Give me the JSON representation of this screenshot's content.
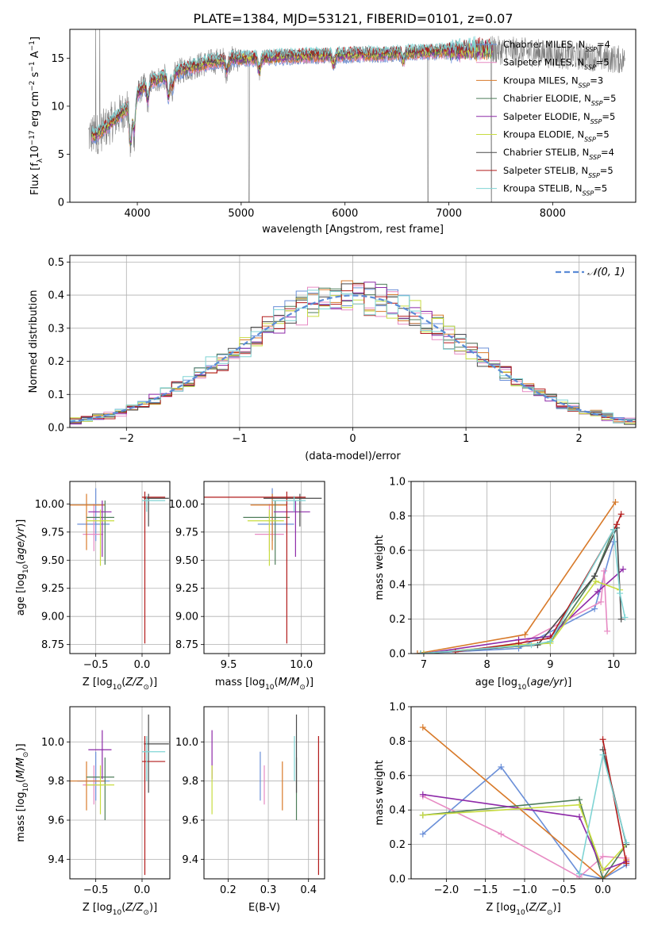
{
  "figure_title": "PLATE=1384, MJD=53121, FIBERID=0101, z=0.07",
  "colors": {
    "Chabrier MILES": "#6a8fd8",
    "Salpeter MILES": "#e78ac3",
    "Kroupa MILES": "#d87a2a",
    "Chabrier ELODIE": "#4e7d5a",
    "Salpeter ELODIE": "#8e2aa8",
    "Kroupa ELODIE": "#c8dc40",
    "Chabrier STELIB": "#4a4a4a",
    "Salpeter STELIB": "#b21b1b",
    "Kroupa STELIB": "#7fd4d4",
    "data": "#808080",
    "normal": "#5b8bd6"
  },
  "legend": [
    {
      "model": "Chabrier MILES",
      "text": "Chabrier MILES, N",
      "sub": "SSP",
      "n": "=4"
    },
    {
      "model": "Salpeter MILES",
      "text": "Salpeter MILES, N",
      "sub": "SSP",
      "n": "=5"
    },
    {
      "model": "Kroupa MILES",
      "text": "Kroupa MILES, N",
      "sub": "SSP",
      "n": "=3"
    },
    {
      "model": "Chabrier ELODIE",
      "text": "Chabrier ELODIE, N",
      "sub": "SSP",
      "n": "=5"
    },
    {
      "model": "Salpeter ELODIE",
      "text": "Salpeter ELODIE, N",
      "sub": "SSP",
      "n": "=5"
    },
    {
      "model": "Kroupa ELODIE",
      "text": "Kroupa ELODIE, N",
      "sub": "SSP",
      "n": "=5"
    },
    {
      "model": "Chabrier STELIB",
      "text": "Chabrier STELIB, N",
      "sub": "SSP",
      "n": "=4"
    },
    {
      "model": "Salpeter STELIB",
      "text": "Salpeter STELIB, N",
      "sub": "SSP",
      "n": "=5"
    },
    {
      "model": "Kroupa STELIB",
      "text": "Kroupa STELIB, N",
      "sub": "SSP",
      "n": "=5"
    }
  ],
  "chart_data": [
    {
      "id": "spectrum",
      "type": "line",
      "title": "PLATE=1384, MJD=53121, FIBERID=0101, z=0.07",
      "xlabel": "wavelength [Angstrom, rest frame]",
      "ylabel": "Flux [f_λ 10^-17 erg cm^-2 s^-1 A^-1]",
      "xlim": [
        3350,
        8800
      ],
      "ylim": [
        0,
        18
      ],
      "xticks": [
        4000,
        5000,
        6000,
        7000,
        8000
      ],
      "yticks": [
        0,
        5,
        10,
        15
      ],
      "grid": false,
      "legend_position": "top-right",
      "continuum": {
        "x": [
          3530,
          3600,
          3700,
          3800,
          3900,
          4000,
          4100,
          4200,
          4300,
          4400,
          4500,
          4700,
          4900,
          5100,
          5300,
          5500,
          5700,
          5900,
          6100,
          6300,
          6500,
          6700,
          6900,
          7100,
          7300,
          7500,
          7700,
          7900,
          8100,
          8300,
          8500,
          8700
        ],
        "y": [
          7.0,
          7.0,
          7.8,
          8.8,
          9.8,
          11.3,
          12.5,
          12.8,
          13.2,
          13.6,
          14.0,
          14.6,
          14.9,
          15.0,
          15.1,
          15.2,
          15.3,
          15.3,
          15.4,
          15.4,
          15.5,
          15.6,
          15.7,
          15.8,
          15.9,
          15.8,
          15.7,
          15.5,
          15.3,
          15.2,
          15.0,
          14.8
        ]
      },
      "features": [
        {
          "x": 3934,
          "depth": 4.5
        },
        {
          "x": 3969,
          "depth": 3.5
        },
        {
          "x": 4101,
          "depth": 2.0
        },
        {
          "x": 4300,
          "depth": 2.5
        },
        {
          "x": 4340,
          "depth": 1.5
        },
        {
          "x": 4861,
          "depth": 1.2
        },
        {
          "x": 5175,
          "depth": 1.5
        },
        {
          "x": 5890,
          "depth": 1.0
        },
        {
          "x": 6563,
          "depth": 0.8
        }
      ],
      "data_gaps": [
        5075,
        6800,
        7410
      ],
      "models_end_x": 7420
    },
    {
      "id": "residuals",
      "type": "line",
      "xlabel": "(data-model)/error",
      "ylabel": "Normed distribution",
      "xlim": [
        -2.5,
        2.5
      ],
      "ylim": [
        0,
        0.52
      ],
      "xticks": [
        -2,
        -1,
        0,
        1,
        2
      ],
      "yticks": [
        0.0,
        0.1,
        0.2,
        0.3,
        0.4,
        0.5
      ],
      "grid": true,
      "legend_position": "top-right",
      "legend": [
        "𝒩(0,1)"
      ],
      "bin_width": 0.1
    },
    {
      "id": "age-vs-Z",
      "type": "scatter",
      "xlabel": "Z [log10(Z/Z⊙)]",
      "ylabel": "age  [log10(age/yr)]",
      "xlim": [
        -0.78,
        0.3
      ],
      "ylim": [
        8.67,
        10.2
      ],
      "xticks": [
        -0.5,
        0.0
      ],
      "yticks": [
        8.75,
        9.0,
        9.25,
        9.5,
        9.75,
        10.0
      ],
      "grid": true,
      "points": [
        {
          "model": "Chabrier MILES",
          "x": -0.5,
          "xerr": [
            0.2,
            0.15
          ],
          "y": 9.82,
          "yerr": [
            0.15,
            0.32
          ]
        },
        {
          "model": "Salpeter MILES",
          "x": -0.52,
          "xerr": [
            0.12,
            0.1
          ],
          "y": 9.73,
          "yerr": [
            0.15,
            0.27
          ]
        },
        {
          "model": "Kroupa MILES",
          "x": -0.6,
          "xerr": [
            0.2,
            0.2
          ],
          "y": 9.99,
          "yerr": [
            0.4,
            0.1
          ]
        },
        {
          "model": "Chabrier ELODIE",
          "x": -0.4,
          "xerr": [
            0.2,
            0.1
          ],
          "y": 9.88,
          "yerr": [
            0.42,
            0.15
          ]
        },
        {
          "model": "Salpeter ELODIE",
          "x": -0.43,
          "xerr": [
            0.15,
            0.1
          ],
          "y": 9.93,
          "yerr": [
            0.4,
            0.1
          ]
        },
        {
          "model": "Kroupa ELODIE",
          "x": -0.45,
          "xerr": [
            0.15,
            0.15
          ],
          "y": 9.85,
          "yerr": [
            0.4,
            0.1
          ]
        },
        {
          "model": "Chabrier STELIB",
          "x": 0.07,
          "xerr": [
            0.05,
            0.22
          ],
          "y": 10.05,
          "yerr": [
            0.25,
            0.04
          ]
        },
        {
          "model": "Salpeter STELIB",
          "x": 0.03,
          "xerr": [
            0.03,
            0.22
          ],
          "y": 10.06,
          "yerr": [
            1.3,
            0.05
          ]
        },
        {
          "model": "Kroupa STELIB",
          "x": 0.05,
          "xerr": [
            0.05,
            0.2
          ],
          "y": 10.03,
          "yerr": [
            0.1,
            0.04
          ]
        }
      ]
    },
    {
      "id": "age-vs-mass",
      "type": "scatter",
      "xlabel": "mass [log10(M/M⊙)]",
      "ylabel": "",
      "xlim": [
        9.33,
        10.16
      ],
      "ylim": [
        8.67,
        10.2
      ],
      "xticks": [
        9.5,
        10.0
      ],
      "yticks": [
        8.75,
        9.0,
        9.25,
        9.5,
        9.75,
        10.0
      ],
      "grid": true,
      "points": [
        {
          "model": "Chabrier MILES",
          "x": 9.8,
          "xerr": [
            0.1,
            0.15
          ],
          "y": 9.82,
          "yerr": [
            0.15,
            0.32
          ]
        },
        {
          "model": "Salpeter MILES",
          "x": 9.78,
          "xerr": [
            0.1,
            0.1
          ],
          "y": 9.73,
          "yerr": [
            0.15,
            0.27
          ]
        },
        {
          "model": "Kroupa MILES",
          "x": 9.8,
          "xerr": [
            0.15,
            0.1
          ],
          "y": 9.99,
          "yerr": [
            0.4,
            0.1
          ]
        },
        {
          "model": "Chabrier ELODIE",
          "x": 9.82,
          "xerr": [
            0.22,
            0.1
          ],
          "y": 9.88,
          "yerr": [
            0.42,
            0.15
          ]
        },
        {
          "model": "Salpeter ELODIE",
          "x": 9.96,
          "xerr": [
            0.15,
            0.1
          ],
          "y": 9.93,
          "yerr": [
            0.4,
            0.1
          ]
        },
        {
          "model": "Kroupa ELODIE",
          "x": 9.78,
          "xerr": [
            0.15,
            0.1
          ],
          "y": 9.85,
          "yerr": [
            0.4,
            0.1
          ]
        },
        {
          "model": "Chabrier STELIB",
          "x": 9.99,
          "xerr": [
            0.25,
            0.15
          ],
          "y": 10.05,
          "yerr": [
            0.25,
            0.04
          ]
        },
        {
          "model": "Salpeter STELIB",
          "x": 9.9,
          "xerr": [
            0.58,
            0.13
          ],
          "y": 10.06,
          "yerr": [
            1.3,
            0.05
          ]
        },
        {
          "model": "Kroupa STELIB",
          "x": 9.95,
          "xerr": [
            0.15,
            0.08
          ],
          "y": 10.03,
          "yerr": [
            0.1,
            0.04
          ]
        }
      ]
    },
    {
      "id": "mass-vs-Z",
      "type": "scatter",
      "xlabel": "Z [log10(Z/Z⊙)]",
      "ylabel": "mass [log10(M/M⊙)]",
      "xlim": [
        -0.78,
        0.3
      ],
      "ylim": [
        9.3,
        10.18
      ],
      "xticks": [
        -0.5,
        0.0
      ],
      "yticks": [
        9.4,
        9.6,
        9.8,
        10.0
      ],
      "grid": true,
      "points": [
        {
          "model": "Chabrier MILES",
          "x": -0.5,
          "xerr": [
            0.2,
            0.15
          ],
          "y": 9.8,
          "yerr": [
            0.1,
            0.15
          ]
        },
        {
          "model": "Salpeter MILES",
          "x": -0.52,
          "xerr": [
            0.12,
            0.1
          ],
          "y": 9.78,
          "yerr": [
            0.1,
            0.1
          ]
        },
        {
          "model": "Kroupa MILES",
          "x": -0.6,
          "xerr": [
            0.2,
            0.2
          ],
          "y": 9.8,
          "yerr": [
            0.15,
            0.1
          ]
        },
        {
          "model": "Chabrier ELODIE",
          "x": -0.4,
          "xerr": [
            0.2,
            0.1
          ],
          "y": 9.82,
          "yerr": [
            0.22,
            0.1
          ]
        },
        {
          "model": "Salpeter ELODIE",
          "x": -0.43,
          "xerr": [
            0.15,
            0.1
          ],
          "y": 9.96,
          "yerr": [
            0.15,
            0.1
          ]
        },
        {
          "model": "Kroupa ELODIE",
          "x": -0.45,
          "xerr": [
            0.15,
            0.15
          ],
          "y": 9.78,
          "yerr": [
            0.15,
            0.1
          ]
        },
        {
          "model": "Chabrier STELIB",
          "x": 0.07,
          "xerr": [
            0.05,
            0.22
          ],
          "y": 9.99,
          "yerr": [
            0.25,
            0.15
          ]
        },
        {
          "model": "Salpeter STELIB",
          "x": 0.03,
          "xerr": [
            0.03,
            0.22
          ],
          "y": 9.9,
          "yerr": [
            0.58,
            0.13
          ]
        },
        {
          "model": "Kroupa STELIB",
          "x": 0.05,
          "xerr": [
            0.05,
            0.2
          ],
          "y": 9.95,
          "yerr": [
            0.15,
            0.08
          ]
        }
      ]
    },
    {
      "id": "mass-vs-EBV",
      "type": "scatter",
      "xlabel": "E(B-V)",
      "ylabel": "",
      "xlim": [
        0.14,
        0.44
      ],
      "ylim": [
        9.3,
        10.18
      ],
      "xticks": [
        0.2,
        0.3,
        0.4
      ],
      "yticks": [
        9.4,
        9.6,
        9.8,
        10.0
      ],
      "grid": true,
      "points": [
        {
          "model": "Chabrier MILES",
          "x": 0.28,
          "y": 9.8,
          "yerr": [
            0.1,
            0.15
          ]
        },
        {
          "model": "Salpeter MILES",
          "x": 0.29,
          "y": 9.78,
          "yerr": [
            0.1,
            0.1
          ]
        },
        {
          "model": "Kroupa MILES",
          "x": 0.335,
          "y": 9.8,
          "yerr": [
            0.15,
            0.1
          ]
        },
        {
          "model": "Chabrier ELODIE",
          "x": 0.37,
          "y": 9.82,
          "yerr": [
            0.22,
            0.1
          ]
        },
        {
          "model": "Salpeter ELODIE",
          "x": 0.16,
          "y": 9.96,
          "yerr": [
            0.15,
            0.1
          ]
        },
        {
          "model": "Kroupa ELODIE",
          "x": 0.16,
          "y": 9.78,
          "yerr": [
            0.15,
            0.1
          ]
        },
        {
          "model": "Chabrier STELIB",
          "x": 0.37,
          "y": 9.99,
          "yerr": [
            0.25,
            0.15
          ]
        },
        {
          "model": "Salpeter STELIB",
          "x": 0.425,
          "y": 9.9,
          "yerr": [
            0.58,
            0.13
          ]
        },
        {
          "model": "Kroupa STELIB",
          "x": 0.365,
          "y": 9.95,
          "yerr": [
            0.15,
            0.08
          ]
        }
      ]
    },
    {
      "id": "weight-vs-age",
      "type": "line",
      "xlabel": "age  [log10(age/yr)]",
      "ylabel": "mass weight",
      "xlim": [
        6.8,
        10.35
      ],
      "ylim": [
        0,
        1.0
      ],
      "xticks": [
        7,
        8,
        9,
        10
      ],
      "yticks": [
        0.0,
        0.2,
        0.4,
        0.6,
        0.8,
        1.0
      ],
      "grid": true,
      "series": [
        {
          "model": "Chabrier MILES",
          "x": [
            6.9,
            8.5,
            9.7,
            10.0
          ],
          "y": [
            0.0,
            0.03,
            0.26,
            0.65
          ]
        },
        {
          "model": "Salpeter MILES",
          "x": [
            7.0,
            8.5,
            9.8,
            9.85,
            9.9
          ],
          "y": [
            0.0,
            0.05,
            0.3,
            0.48,
            0.13
          ]
        },
        {
          "model": "Kroupa MILES",
          "x": [
            6.9,
            8.6,
            10.03
          ],
          "y": [
            0.0,
            0.11,
            0.88
          ]
        },
        {
          "model": "Chabrier ELODIE",
          "x": [
            6.95,
            8.8,
            9.0,
            9.7,
            10.0
          ],
          "y": [
            0.0,
            0.05,
            0.07,
            0.45,
            0.72
          ]
        },
        {
          "model": "Salpeter ELODIE",
          "x": [
            7.0,
            8.5,
            9.0,
            9.75,
            10.15
          ],
          "y": [
            0.0,
            0.08,
            0.1,
            0.36,
            0.49
          ]
        },
        {
          "model": "Kroupa ELODIE",
          "x": [
            7.0,
            8.5,
            9.0,
            9.72,
            10.1
          ],
          "y": [
            0.0,
            0.05,
            0.06,
            0.42,
            0.37
          ]
        },
        {
          "model": "Chabrier STELIB",
          "x": [
            6.95,
            8.8,
            9.7,
            10.05,
            10.12
          ],
          "y": [
            0.0,
            0.05,
            0.45,
            0.73,
            0.2
          ]
        },
        {
          "model": "Salpeter STELIB",
          "x": [
            7.5,
            8.5,
            9.0,
            10.05,
            10.12
          ],
          "y": [
            0.01,
            0.06,
            0.09,
            0.75,
            0.81
          ]
        },
        {
          "model": "Kroupa STELIB",
          "x": [
            6.95,
            8.7,
            9.0,
            10.0,
            10.1,
            10.18
          ],
          "y": [
            0.0,
            0.05,
            0.07,
            0.72,
            0.35,
            0.21
          ]
        }
      ]
    },
    {
      "id": "weight-vs-Z",
      "type": "line",
      "xlabel": "Z [log10(Z/Z⊙)]",
      "ylabel": "mass weight",
      "xlim": [
        -2.45,
        0.42
      ],
      "ylim": [
        0,
        1.0
      ],
      "xticks": [
        -2.0,
        -1.5,
        -1.0,
        -0.5,
        0.0
      ],
      "yticks": [
        0.0,
        0.2,
        0.4,
        0.6,
        0.8,
        1.0
      ],
      "grid": true,
      "series": [
        {
          "model": "Chabrier MILES",
          "x": [
            -2.3,
            -1.3,
            -0.3,
            0.0,
            0.3
          ],
          "y": [
            0.26,
            0.65,
            0.03,
            0.0,
            0.08
          ]
        },
        {
          "model": "Salpeter MILES",
          "x": [
            -2.3,
            -1.3,
            -0.3,
            0.0,
            0.3
          ],
          "y": [
            0.48,
            0.26,
            0.01,
            0.13,
            0.12
          ]
        },
        {
          "model": "Kroupa MILES",
          "x": [
            -2.3,
            0.0,
            0.3
          ],
          "y": [
            0.88,
            0.0,
            0.11
          ]
        },
        {
          "model": "Chabrier ELODIE",
          "x": [
            -2.3,
            -0.3,
            0.0,
            0.3
          ],
          "y": [
            0.37,
            0.46,
            0.0,
            0.2
          ]
        },
        {
          "model": "Salpeter ELODIE",
          "x": [
            -2.3,
            -0.3,
            0.0,
            0.3
          ],
          "y": [
            0.49,
            0.36,
            0.05,
            0.1
          ]
        },
        {
          "model": "Kroupa ELODIE",
          "x": [
            -2.3,
            -0.3,
            0.0,
            0.3
          ],
          "y": [
            0.37,
            0.43,
            0.05,
            0.2
          ]
        },
        {
          "model": "Chabrier STELIB",
          "x": [
            0.0,
            0.3
          ],
          "y": [
            0.75,
            0.2
          ]
        },
        {
          "model": "Salpeter STELIB",
          "x": [
            0.0,
            0.3
          ],
          "y": [
            0.81,
            0.09
          ]
        },
        {
          "model": "Kroupa STELIB",
          "x": [
            -0.3,
            0.0,
            0.3
          ],
          "y": [
            0.03,
            0.72,
            0.21
          ]
        }
      ]
    }
  ]
}
